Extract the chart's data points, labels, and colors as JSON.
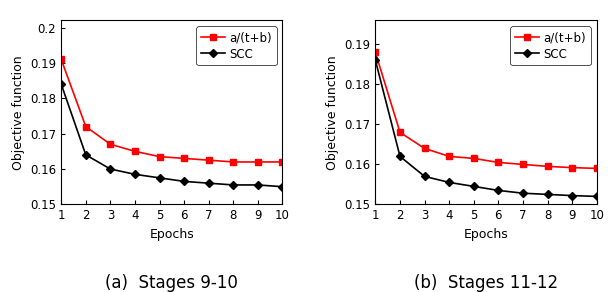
{
  "epochs": [
    1,
    2,
    3,
    4,
    5,
    6,
    7,
    8,
    9,
    10
  ],
  "plot1": {
    "red": [
      0.191,
      0.172,
      0.167,
      0.165,
      0.1635,
      0.163,
      0.1625,
      0.162,
      0.162,
      0.162
    ],
    "black": [
      0.184,
      0.164,
      0.16,
      0.1585,
      0.1575,
      0.1565,
      0.156,
      0.1555,
      0.1555,
      0.155
    ],
    "ylim": [
      0.15,
      0.202
    ],
    "yticks": [
      0.15,
      0.16,
      0.17,
      0.18,
      0.19,
      0.2
    ],
    "yticklabels": [
      "0.15",
      "0.16",
      "0.17",
      "0.18",
      "0.19",
      "0.2"
    ],
    "xlabel": "Epochs",
    "ylabel": "Objective function",
    "caption": "(a)  Stages 9-10"
  },
  "plot2": {
    "red": [
      0.188,
      0.168,
      0.164,
      0.162,
      0.1615,
      0.1605,
      0.16,
      0.1595,
      0.1592,
      0.159
    ],
    "black": [
      0.186,
      0.162,
      0.157,
      0.1555,
      0.1545,
      0.1535,
      0.1528,
      0.1525,
      0.1522,
      0.152
    ],
    "ylim": [
      0.15,
      0.196
    ],
    "yticks": [
      0.15,
      0.16,
      0.17,
      0.18,
      0.19
    ],
    "yticklabels": [
      "0.15",
      "0.16",
      "0.17",
      "0.18",
      "0.19"
    ],
    "xlabel": "Epochs",
    "ylabel": "Objective function",
    "caption": "(b)  Stages 11-12"
  },
  "red_color": "#ff0000",
  "black_color": "#000000",
  "legend_red": "a/(t+b)",
  "legend_black": "SCC",
  "marker_red": "s",
  "marker_black": "D",
  "linewidth": 1.2,
  "markersize": 4,
  "caption_fontsize": 12,
  "tick_fontsize": 8.5,
  "label_fontsize": 9,
  "legend_fontsize": 8.5
}
